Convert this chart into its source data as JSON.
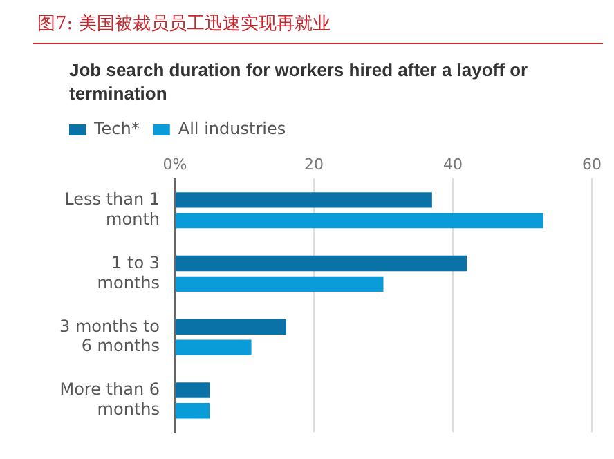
{
  "chart_data": {
    "type": "bar",
    "orientation": "horizontal",
    "title": "图7:  美国被裁员员工迅速实现再就业",
    "subtitle": "Job search duration for workers hired after a layoff or termination",
    "categories": [
      "Less than 1 month",
      "1 to 3 months",
      "3 months to 6 months",
      "More than 6 months"
    ],
    "series": [
      {
        "name": "Tech*",
        "color": "#0b72a8",
        "values": [
          37,
          42,
          16,
          5
        ]
      },
      {
        "name": "All industries",
        "color": "#0a9bd9",
        "values": [
          53,
          30,
          11,
          5
        ]
      }
    ],
    "xlim": [
      0,
      60
    ],
    "xticks": [
      {
        "value": 0,
        "label": "0%"
      },
      20,
      40,
      60
    ],
    "grid": "x",
    "legend": "top left"
  }
}
